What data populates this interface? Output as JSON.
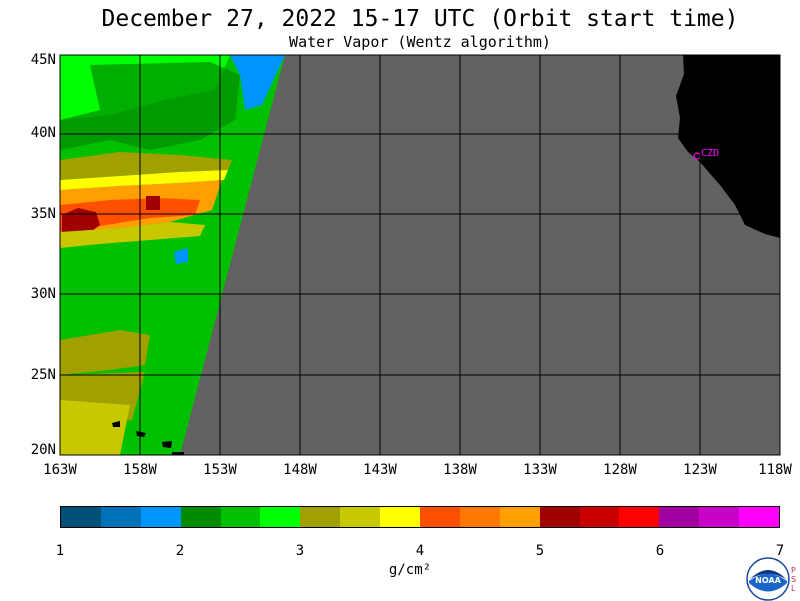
{
  "title": "December 27, 2022  15-17 UTC  (Orbit start time)",
  "subtitle": "Water Vapor (Wentz algorithm)",
  "map": {
    "lat_labels": [
      "45N",
      "40N",
      "35N",
      "30N",
      "25N",
      "20N"
    ],
    "lon_labels": [
      "163W",
      "158W",
      "153W",
      "148W",
      "143W",
      "138W",
      "133W",
      "128W",
      "123W",
      "118W"
    ],
    "station_label": "CZD",
    "colors": {
      "no_data": "#626262",
      "land": "#000000",
      "grid": "#000000",
      "station": "#ff00ff"
    }
  },
  "colorbar": {
    "ticks": [
      "1",
      "2",
      "3",
      "4",
      "5",
      "6",
      "7"
    ],
    "unit": "g/cm²",
    "colors": [
      "#005078",
      "#0070b8",
      "#0096ff",
      "#008c00",
      "#00c000",
      "#00ff00",
      "#a0a000",
      "#c8c800",
      "#ffff00",
      "#ff5000",
      "#ff7800",
      "#ffa000",
      "#a00000",
      "#c80000",
      "#ff0000",
      "#a000a0",
      "#c800c8",
      "#ff00ff"
    ]
  },
  "logo": {
    "text": "NOAA",
    "side_letters": [
      "P",
      "S",
      "L"
    ]
  }
}
